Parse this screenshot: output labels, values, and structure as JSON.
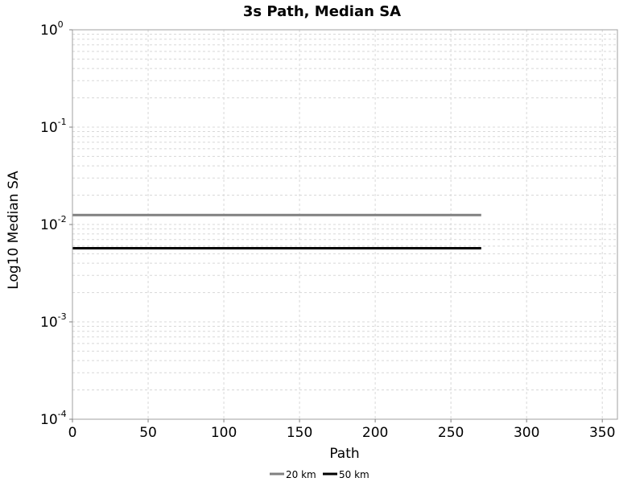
{
  "chart_data": {
    "type": "line",
    "title": "3s Path, Median SA",
    "xlabel": "Path",
    "ylabel": "Log10 Median SA",
    "xlim": [
      0,
      360
    ],
    "ylim": [
      0.0001,
      1
    ],
    "yscale": "log",
    "x_ticks": [
      0,
      50,
      100,
      150,
      200,
      250,
      300,
      350
    ],
    "y_ticks": [
      {
        "base": "10",
        "exp": "-4",
        "value": 0.0001
      },
      {
        "base": "10",
        "exp": "-3",
        "value": 0.001
      },
      {
        "base": "10",
        "exp": "-2",
        "value": 0.01
      },
      {
        "base": "10",
        "exp": "-1",
        "value": 0.1
      },
      {
        "base": "10",
        "exp": "0",
        "value": 1
      }
    ],
    "grid": true,
    "legend_position": "bottom",
    "series": [
      {
        "name": "20 km",
        "color": "#808080",
        "x": [
          0,
          270
        ],
        "y": [
          0.0125,
          0.0125
        ]
      },
      {
        "name": "50 km",
        "color": "#000000",
        "x": [
          0,
          270
        ],
        "y": [
          0.0057,
          0.0057
        ]
      }
    ]
  }
}
